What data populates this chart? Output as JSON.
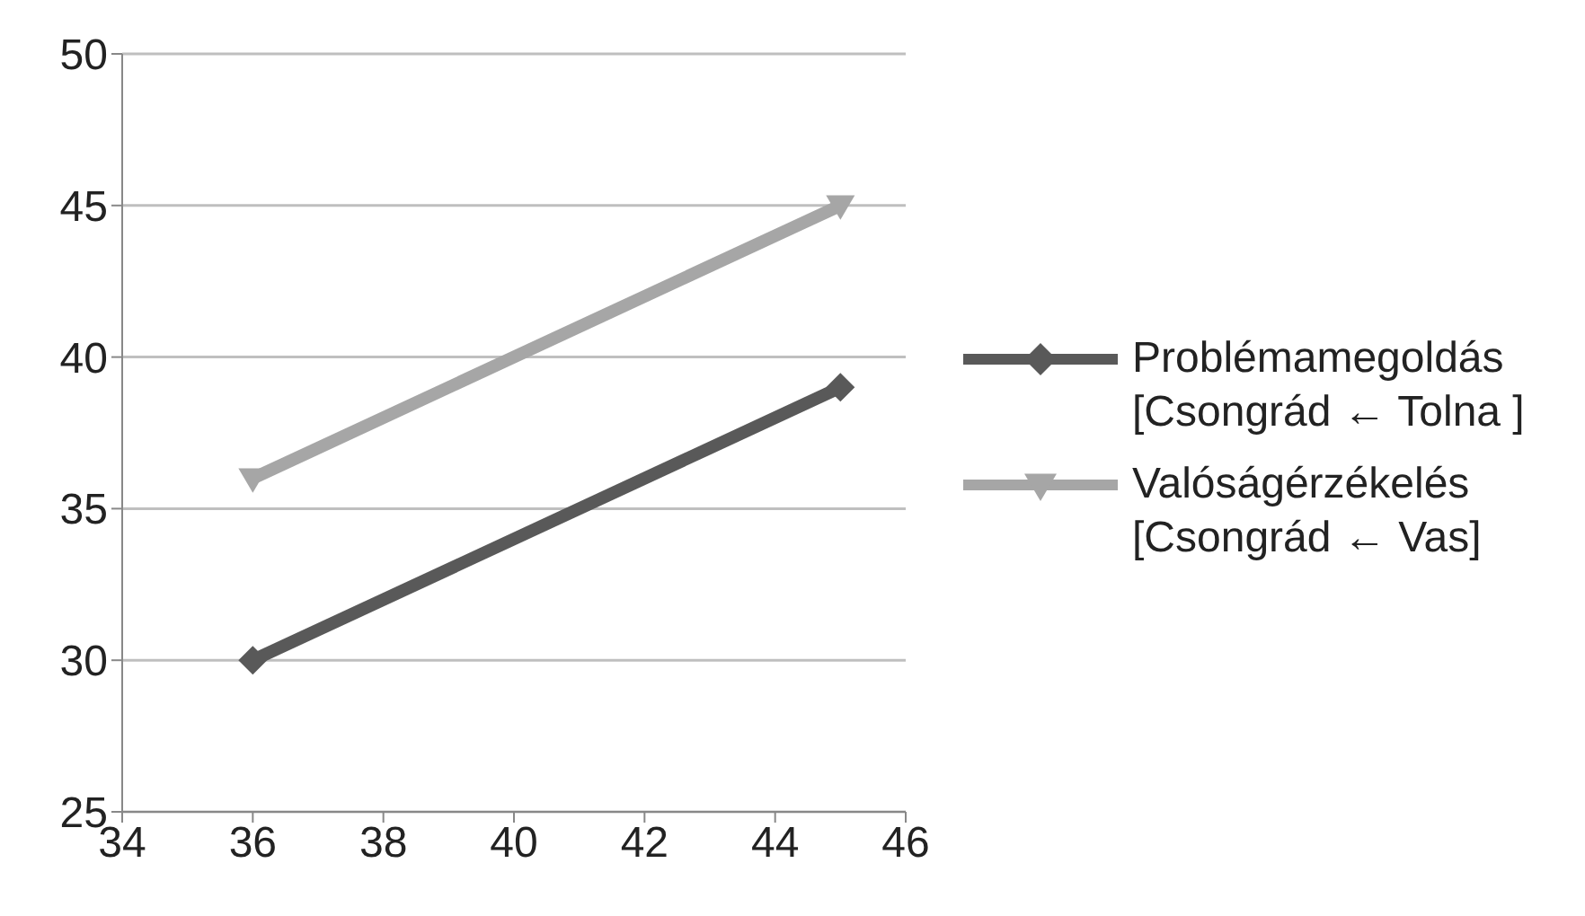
{
  "chart_data": {
    "type": "line",
    "x": [
      36,
      45
    ],
    "series": [
      {
        "name": "Problémamegoldás [Csongrád ← Tolna ]",
        "color": "#595959",
        "values": [
          30,
          39
        ],
        "marker": "diamond"
      },
      {
        "name": "Valóságérzékelés [Csongrád ← Vas]",
        "color": "#a6a6a6",
        "values": [
          36,
          45
        ],
        "marker": "triangle"
      }
    ],
    "xlim": [
      34,
      46
    ],
    "xticks": [
      34,
      36,
      38,
      40,
      42,
      44,
      46
    ],
    "ylim": [
      25,
      50
    ],
    "yticks": [
      25,
      30,
      35,
      40,
      45,
      50
    ],
    "grid": "y",
    "legend": "right",
    "line_style": "solid"
  }
}
